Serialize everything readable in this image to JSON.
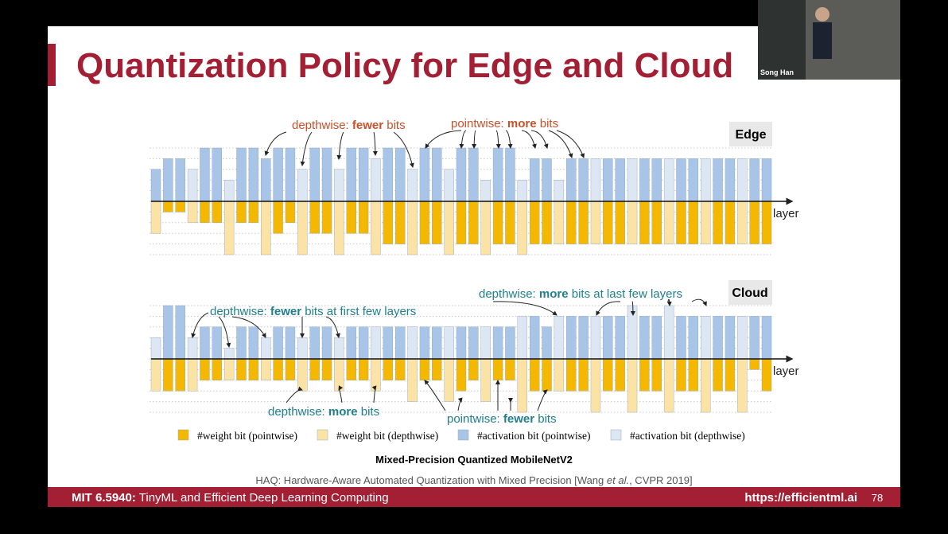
{
  "slide": {
    "title": "Quantization Policy for Edge and Cloud",
    "speaker": "Song Han",
    "caption": "Mixed-Precision Quantized MobileNetV2",
    "citation": {
      "prefix": "HAQ: Hardware-Aware Automated Quantization with Mixed Precision [Wang ",
      "italic": "et al.",
      "suffix": ", CVPR 2019]"
    },
    "footer": {
      "course_code": "MIT 6.5940:",
      "course": "TinyML and Efficient Deep Learning Computing",
      "url": "https://efficientml.ai",
      "page": "78"
    }
  },
  "chart_data": [
    {
      "type": "bar",
      "title": "Edge",
      "x_label": "layer",
      "ylim": [
        -5,
        5
      ],
      "yticks": [
        -5,
        -4,
        -3,
        -2,
        -1,
        0,
        1,
        2,
        3,
        4,
        5
      ],
      "grid": true,
      "categories": [
        null,
        null,
        null,
        null,
        null,
        null,
        null,
        null,
        null,
        null,
        null,
        null,
        null,
        null,
        null,
        null,
        null,
        null,
        null,
        null,
        null,
        null,
        null,
        null,
        null,
        null,
        null,
        null,
        null,
        null,
        null,
        null,
        null,
        null,
        null,
        null,
        null,
        null,
        null,
        null,
        null,
        null,
        null,
        null,
        null,
        null,
        null,
        null,
        null,
        null,
        null
      ],
      "series": [
        {
          "name": "#weight bit (pointwise)",
          "color": "#f5b800",
          "values": [
            null,
            -1,
            -1,
            null,
            -2,
            -2,
            null,
            -2,
            -2,
            null,
            -3,
            -2,
            null,
            -3,
            -3,
            null,
            -3,
            -3,
            null,
            -4,
            -4,
            null,
            -4,
            -4,
            null,
            -4,
            -4,
            null,
            -4,
            -4,
            null,
            -4,
            -4,
            null,
            -4,
            -4,
            null,
            -4,
            -4,
            null,
            -4,
            -4,
            null,
            -4,
            -4,
            null,
            -4,
            -4,
            null,
            -4,
            -4
          ]
        },
        {
          "name": "#weight bit (depthwise)",
          "color": "#fbe3a6",
          "values": [
            -3,
            null,
            null,
            -2,
            null,
            null,
            -5,
            null,
            null,
            -5,
            null,
            null,
            -5,
            null,
            null,
            -5,
            null,
            null,
            -5,
            null,
            null,
            -5,
            null,
            null,
            -5,
            null,
            null,
            -5,
            null,
            null,
            -5,
            null,
            null,
            -4,
            null,
            null,
            -4,
            null,
            null,
            -4,
            null,
            null,
            -4,
            null,
            null,
            -4,
            null,
            null,
            -4,
            null,
            null
          ]
        },
        {
          "name": "#activation bit (pointwise)",
          "color": "#a8c4e6",
          "values": [
            3,
            4,
            4,
            null,
            5,
            5,
            null,
            5,
            5,
            4,
            5,
            5,
            null,
            5,
            5,
            null,
            5,
            5,
            null,
            5,
            5,
            null,
            5,
            5,
            null,
            5,
            5,
            null,
            5,
            5,
            null,
            4,
            4,
            null,
            4,
            4,
            null,
            4,
            4,
            null,
            4,
            4,
            null,
            4,
            4,
            null,
            4,
            4,
            null,
            4,
            4
          ]
        },
        {
          "name": "#activation bit (depthwise)",
          "color": "#dde6f3",
          "values": [
            null,
            null,
            null,
            3,
            null,
            null,
            2,
            null,
            null,
            null,
            null,
            null,
            3,
            null,
            null,
            3,
            null,
            null,
            4,
            null,
            null,
            3,
            null,
            null,
            3,
            null,
            null,
            2,
            null,
            null,
            2,
            null,
            null,
            2,
            null,
            null,
            4,
            null,
            null,
            4,
            null,
            null,
            4,
            null,
            null,
            4,
            null,
            null,
            4,
            null,
            null
          ]
        }
      ],
      "annotations": [
        {
          "prefix": "depthwise:",
          "emphasis": "fewer",
          "suffix": "bits"
        },
        {
          "prefix": "pointwise:",
          "emphasis": "more",
          "suffix": "bits"
        }
      ]
    },
    {
      "type": "bar",
      "title": "Cloud",
      "x_label": "layer",
      "ylim": [
        -5,
        5
      ],
      "yticks": [
        -5,
        -4,
        -3,
        -2,
        -1,
        0,
        1,
        2,
        3,
        4,
        5
      ],
      "grid": true,
      "categories": [
        null,
        null,
        null,
        null,
        null,
        null,
        null,
        null,
        null,
        null,
        null,
        null,
        null,
        null,
        null,
        null,
        null,
        null,
        null,
        null,
        null,
        null,
        null,
        null,
        null,
        null,
        null,
        null,
        null,
        null,
        null,
        null,
        null,
        null,
        null,
        null,
        null,
        null,
        null,
        null,
        null,
        null,
        null,
        null,
        null,
        null,
        null,
        null,
        null,
        null,
        null
      ],
      "series": [
        {
          "color": "#f5b800",
          "values": [
            null,
            -3,
            -3,
            null,
            -2,
            -2,
            null,
            -2,
            -2,
            null,
            -2,
            -2,
            null,
            -2,
            -2,
            null,
            -2,
            -2,
            null,
            -2,
            -2,
            null,
            -2,
            -2,
            null,
            -3,
            -2,
            null,
            -2,
            -2,
            null,
            -3,
            -3,
            null,
            -3,
            -3,
            null,
            -3,
            -3,
            null,
            -3,
            -3,
            null,
            -3,
            -3,
            null,
            -3,
            -3,
            null,
            -1,
            -3
          ]
        },
        {
          "color": "#fbe3a6",
          "values": [
            -3,
            null,
            null,
            -3,
            null,
            null,
            -2,
            null,
            null,
            -2,
            null,
            null,
            -3,
            null,
            null,
            -3,
            null,
            null,
            -3,
            null,
            null,
            -4,
            null,
            null,
            -4,
            null,
            null,
            -4,
            null,
            null,
            -5,
            null,
            null,
            -3,
            null,
            null,
            -5,
            null,
            null,
            -5,
            null,
            null,
            -5,
            null,
            null,
            -5,
            null,
            null,
            -5,
            null,
            null
          ]
        },
        {
          "color": "#a8c4e6",
          "values": [
            null,
            5,
            5,
            null,
            3,
            3,
            null,
            3,
            3,
            null,
            3,
            3,
            null,
            3,
            3,
            null,
            3,
            3,
            null,
            3,
            3,
            null,
            3,
            3,
            null,
            3,
            3,
            null,
            3,
            3,
            null,
            4,
            3,
            null,
            4,
            4,
            null,
            4,
            4,
            null,
            4,
            4,
            null,
            4,
            4,
            null,
            4,
            4,
            null,
            4,
            4
          ]
        },
        {
          "color": "#dde6f3",
          "values": [
            2,
            null,
            null,
            2,
            null,
            null,
            1,
            null,
            null,
            2,
            null,
            null,
            2,
            null,
            null,
            2,
            null,
            null,
            3,
            null,
            null,
            3,
            null,
            null,
            3,
            null,
            null,
            3,
            null,
            null,
            4,
            null,
            null,
            4,
            null,
            null,
            4,
            null,
            null,
            5,
            null,
            null,
            5,
            null,
            null,
            4,
            null,
            null,
            4,
            null,
            null
          ]
        }
      ],
      "annotations": [
        {
          "prefix": "depthwise:",
          "emphasis": "fewer",
          "suffix": "bits at first few layers"
        },
        {
          "prefix": "depthwise:",
          "emphasis": "more",
          "suffix": "bits at last few layers"
        },
        {
          "prefix": "depthwise:",
          "emphasis": "more",
          "suffix": "bits"
        },
        {
          "prefix": "pointwise:",
          "emphasis": "fewer",
          "suffix": "bits"
        }
      ]
    }
  ]
}
